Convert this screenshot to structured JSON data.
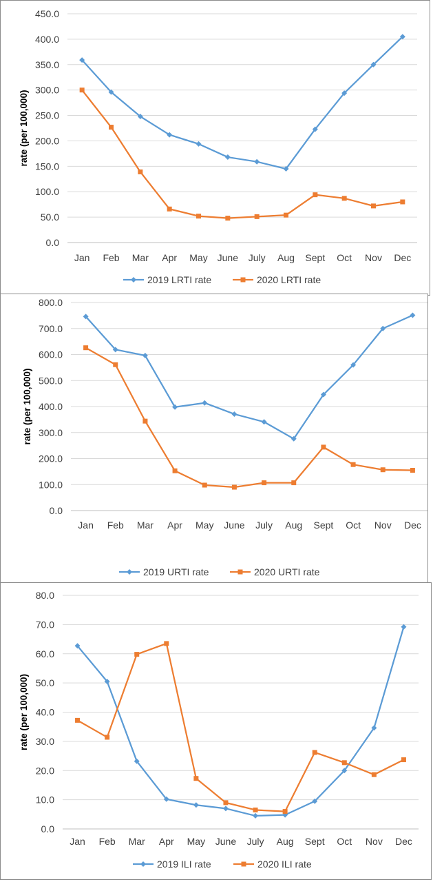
{
  "colors": {
    "series_2019": "#5b9bd5",
    "series_2020": "#ed7d31",
    "gridline": "#d9d9d9"
  },
  "chart_data": [
    {
      "type": "line",
      "title": "",
      "xlabel": "",
      "ylabel": "rate (per 100,000)",
      "categories": [
        "Jan",
        "Feb",
        "Mar",
        "Apr",
        "May",
        "June",
        "July",
        "Aug",
        "Sept",
        "Oct",
        "Nov",
        "Dec"
      ],
      "ylim": [
        0,
        450
      ],
      "ytick_step": 50,
      "ytick_labels": [
        "0.0",
        "50.0",
        "100.0",
        "150.0",
        "200.0",
        "250.0",
        "300.0",
        "350.0",
        "400.0",
        "450.0"
      ],
      "grid": true,
      "legend": "bottom",
      "series": [
        {
          "name": "2019 LRTI rate",
          "marker": "diamond",
          "values": [
            359,
            296,
            248,
            212,
            194,
            168,
            159,
            145,
            223,
            294,
            350,
            405
          ]
        },
        {
          "name": "2020 LRTI rate",
          "marker": "square",
          "values": [
            300,
            227,
            139,
            66,
            52,
            48,
            51,
            54,
            94,
            87,
            72,
            80
          ]
        }
      ]
    },
    {
      "type": "line",
      "title": "",
      "xlabel": "",
      "ylabel": "rate (per 100,000)",
      "categories": [
        "Jan",
        "Feb",
        "Mar",
        "Apr",
        "May",
        "June",
        "July",
        "Aug",
        "Sept",
        "Oct",
        "Nov",
        "Dec"
      ],
      "ylim": [
        0,
        800
      ],
      "ytick_step": 100,
      "ytick_labels": [
        "0.0",
        "100.0",
        "200.0",
        "300.0",
        "400.0",
        "500.0",
        "600.0",
        "700.0",
        "800.0"
      ],
      "grid": true,
      "legend": "bottom",
      "series": [
        {
          "name": "2019 URTI rate",
          "marker": "diamond",
          "values": [
            746,
            619,
            596,
            398,
            414,
            371,
            341,
            276,
            446,
            560,
            700,
            751
          ]
        },
        {
          "name": "2020 URTI rate",
          "marker": "square",
          "values": [
            626,
            561,
            344,
            153,
            98,
            90,
            107,
            107,
            244,
            177,
            157,
            155
          ]
        }
      ]
    },
    {
      "type": "line",
      "title": "",
      "xlabel": "",
      "ylabel": "rate (per 100,000)",
      "categories": [
        "Jan",
        "Feb",
        "Mar",
        "Apr",
        "May",
        "June",
        "July",
        "Aug",
        "Sept",
        "Oct",
        "Nov",
        "Dec"
      ],
      "ylim": [
        0,
        80
      ],
      "ytick_step": 10,
      "ytick_labels": [
        "0.0",
        "10.0",
        "20.0",
        "30.0",
        "40.0",
        "50.0",
        "60.0",
        "70.0",
        "80.0"
      ],
      "grid": true,
      "legend": "bottom",
      "series": [
        {
          "name": "2019 ILI rate",
          "marker": "diamond",
          "values": [
            62.7,
            50.5,
            23.2,
            10.2,
            8.2,
            7.0,
            4.5,
            4.8,
            9.5,
            20.0,
            34.6,
            69.2
          ]
        },
        {
          "name": "2020 ILI rate",
          "marker": "square",
          "values": [
            37.2,
            31.4,
            59.8,
            63.5,
            17.3,
            9.0,
            6.5,
            6.0,
            26.2,
            22.7,
            18.6,
            23.7
          ]
        }
      ]
    }
  ]
}
